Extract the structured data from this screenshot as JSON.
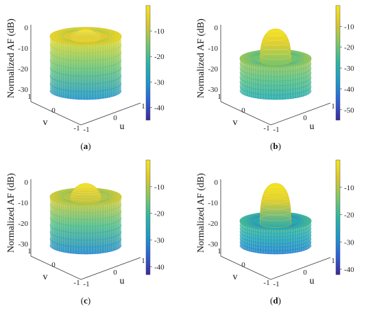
{
  "figure": {
    "colormap": [
      "#3b2a98",
      "#2f60d6",
      "#1f97c9",
      "#2bb5a2",
      "#7cc66a",
      "#d7c533",
      "#f5e51f"
    ]
  },
  "chart_data": [
    {
      "type": "surface3d",
      "panel_label": "a",
      "zlabel": "Normalized AF (dB)",
      "xlabel": "u",
      "ylabel": "v",
      "zticks": [
        0,
        -10,
        -20,
        -30
      ],
      "uticks": [
        -1,
        0,
        1
      ],
      "vticks": [
        -1,
        0,
        1
      ],
      "colorbar": {
        "ticks": [
          -10,
          -20,
          -30,
          -40
        ],
        "min": -45,
        "max": 0
      },
      "main_lobe_db": 0,
      "ring_band_db": [
        -3,
        -6
      ],
      "floor_db": -30
    },
    {
      "type": "surface3d",
      "panel_label": "b",
      "zlabel": "Normalized AF (dB)",
      "xlabel": "u",
      "ylabel": "v",
      "zticks": [
        0,
        -10,
        -20,
        -30
      ],
      "uticks": [
        -1,
        0,
        1
      ],
      "vticks": [
        -1,
        0,
        1
      ],
      "colorbar": {
        "ticks": [
          -10,
          -20,
          -30,
          -40,
          -50
        ],
        "min": -55,
        "max": 0
      },
      "main_lobe_db": 0,
      "ring_band_db": [
        -14,
        -20
      ],
      "floor_db": -30
    },
    {
      "type": "surface3d",
      "panel_label": "c",
      "zlabel": "Normalized AF (dB)",
      "xlabel": "u",
      "ylabel": "v",
      "zticks": [
        0,
        -10,
        -20,
        -30
      ],
      "uticks": [
        -1,
        0,
        1
      ],
      "vticks": [
        -1,
        0,
        1
      ],
      "colorbar": {
        "ticks": [
          -10,
          -20,
          -30,
          -40
        ],
        "min": -43,
        "max": 0
      },
      "main_lobe_db": 0,
      "ring_band_db": [
        -6,
        -10
      ],
      "floor_db": -30
    },
    {
      "type": "surface3d",
      "panel_label": "d",
      "zlabel": "Normalized AF (dB)",
      "xlabel": "u",
      "ylabel": "v",
      "zticks": [
        0,
        -10,
        -20,
        -30
      ],
      "uticks": [
        -1,
        0,
        1
      ],
      "vticks": [
        -1,
        0,
        1
      ],
      "colorbar": {
        "ticks": [
          -10,
          -20,
          -30,
          -40
        ],
        "min": -42,
        "max": 0
      },
      "main_lobe_db": 0,
      "ring_band_db": [
        -18,
        -24
      ],
      "floor_db": -30
    }
  ]
}
